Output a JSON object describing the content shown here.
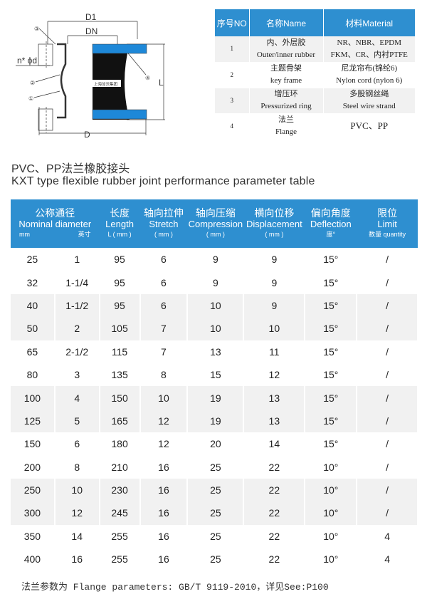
{
  "diagram": {
    "labels": {
      "d1": "D1",
      "dn": "DN",
      "nd": "n* ϕd",
      "l": "L",
      "d": "D",
      "c1": "①",
      "c2": "②",
      "c3": "③",
      "c4": "④",
      "brand": "上海加沃集团"
    },
    "colors": {
      "flange": "#1e88d8",
      "rubber": "#111111"
    }
  },
  "parts": {
    "headers": [
      "序号NO",
      "名称Name",
      "材料Material"
    ],
    "rows": [
      {
        "no": "1",
        "name_cn": "内、外层胶",
        "name_en": "Outer/inner rubber",
        "mat1": "NR、NBR、EPDM",
        "mat2": "FKM、CR、内衬PTFE"
      },
      {
        "no": "2",
        "name_cn": "主题骨架",
        "name_en": "key frame",
        "mat1": "尼龙帘布(锦纶6)",
        "mat2": "Nylon cord (nylon 6)"
      },
      {
        "no": "3",
        "name_cn": "增压环",
        "name_en": "Pressurized ring",
        "mat1": "多股钢丝绳",
        "mat2": "Steel wire strand"
      },
      {
        "no": "4",
        "name_cn": "法兰",
        "name_en": "Flange",
        "mat1": "PVC、PP",
        "mat2": ""
      }
    ]
  },
  "title_cn": "PVC、PP法兰橡胶接头",
  "title_en": "KXT type flexible rubber joint performance parameter table",
  "table": {
    "headers": [
      {
        "cn": "公称通径",
        "en": "Nominal diameter",
        "u1": "mm",
        "u2": "英寸"
      },
      {
        "cn": "长度",
        "en": "Length",
        "u": "L ( mm )"
      },
      {
        "cn": "轴向拉伸",
        "en": "Stretch",
        "u": "( mm )"
      },
      {
        "cn": "轴向压缩",
        "en": "Compression",
        "u": "( mm )"
      },
      {
        "cn": "横向位移",
        "en": "Displacement",
        "u": "( mm )"
      },
      {
        "cn": "偏向角度",
        "en": "Deflection",
        "u": "度°"
      },
      {
        "cn": "限位",
        "en": "Limit",
        "u": "数量 quantity"
      }
    ],
    "rows": [
      [
        "25",
        "1",
        "95",
        "6",
        "9",
        "9",
        "15°",
        "/"
      ],
      [
        "32",
        "1-1/4",
        "95",
        "6",
        "9",
        "9",
        "15°",
        "/"
      ],
      [
        "40",
        "1-1/2",
        "95",
        "6",
        "10",
        "9",
        "15°",
        "/"
      ],
      [
        "50",
        "2",
        "105",
        "7",
        "10",
        "10",
        "15°",
        "/"
      ],
      [
        "65",
        "2-1/2",
        "115",
        "7",
        "13",
        "11",
        "15°",
        "/"
      ],
      [
        "80",
        "3",
        "135",
        "8",
        "15",
        "12",
        "15°",
        "/"
      ],
      [
        "100",
        "4",
        "150",
        "10",
        "19",
        "13",
        "15°",
        "/"
      ],
      [
        "125",
        "5",
        "165",
        "12",
        "19",
        "13",
        "15°",
        "/"
      ],
      [
        "150",
        "6",
        "180",
        "12",
        "20",
        "14",
        "15°",
        "/"
      ],
      [
        "200",
        "8",
        "210",
        "16",
        "25",
        "22",
        "10°",
        "/"
      ],
      [
        "250",
        "10",
        "230",
        "16",
        "25",
        "22",
        "10°",
        "/"
      ],
      [
        "300",
        "12",
        "245",
        "16",
        "25",
        "22",
        "10°",
        "/"
      ],
      [
        "350",
        "14",
        "255",
        "16",
        "25",
        "22",
        "10°",
        "4"
      ],
      [
        "400",
        "16",
        "255",
        "16",
        "25",
        "22",
        "10°",
        "4"
      ]
    ]
  },
  "footnote": "法兰参数为 Flange parameters: GB/T 9119-2010，详见See:P100",
  "colors": {
    "header": "#2e8fd0",
    "stripe": "#f1f1f1"
  }
}
